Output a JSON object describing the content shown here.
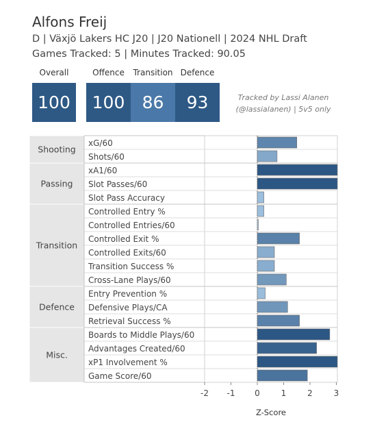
{
  "header": {
    "player_name": "Alfons Freij",
    "player_info": "D | Växjö Lakers HC J20 | J20 Nationell | 2024 NHL Draft",
    "games_info": "Games Tracked: 5 | Minutes Tracked: 90.05"
  },
  "ratings": [
    {
      "label": "Overall",
      "value": "100",
      "color": "#2e5985"
    },
    {
      "label": "Offence",
      "value": "100",
      "color": "#2e5985"
    },
    {
      "label": "Transition",
      "value": "86",
      "color": "#4a78a8"
    },
    {
      "label": "Defence",
      "value": "93",
      "color": "#2e5985"
    }
  ],
  "credit": {
    "line1": "Tracked by Lassi Alanen",
    "line2": "(@lassialanen) | 5v5 only"
  },
  "chart_data": {
    "type": "bar",
    "orientation": "horizontal",
    "xlabel": "Z-Score",
    "xlim": [
      -2.3,
      3.1
    ],
    "xticks": [
      -2,
      -1,
      0,
      1,
      2,
      3
    ],
    "groups": [
      {
        "name": "Shooting",
        "metrics": [
          {
            "label": "xG/60",
            "value": 1.5
          },
          {
            "label": "Shots/60",
            "value": 0.75
          }
        ]
      },
      {
        "name": "Passing",
        "metrics": [
          {
            "label": "xA1/60",
            "value": 3.1
          },
          {
            "label": "Slot Passes/60",
            "value": 3.1
          },
          {
            "label": "Slot Pass Accuracy",
            "value": 0.25
          }
        ]
      },
      {
        "name": "Transition",
        "metrics": [
          {
            "label": "Controlled Entry %",
            "value": 0.25
          },
          {
            "label": "Controlled Entries/60",
            "value": 0.03
          },
          {
            "label": "Controlled Exit %",
            "value": 1.6
          },
          {
            "label": "Controlled Exits/60",
            "value": 0.65
          },
          {
            "label": "Transition Success %",
            "value": 0.65
          },
          {
            "label": "Cross-Lane Plays/60",
            "value": 1.1
          }
        ]
      },
      {
        "name": "Defence",
        "metrics": [
          {
            "label": "Entry Prevention %",
            "value": 0.3
          },
          {
            "label": "Defensive Plays/CA",
            "value": 1.15
          },
          {
            "label": "Retrieval Success %",
            "value": 1.6
          }
        ]
      },
      {
        "name": "Misc.",
        "metrics": [
          {
            "label": "Boards to Middle Plays/60",
            "value": 2.75
          },
          {
            "label": "Advantages Created/60",
            "value": 2.25
          },
          {
            "label": "xP1 Involvement %",
            "value": 3.1
          },
          {
            "label": "Game Score/60",
            "value": 1.9
          }
        ]
      }
    ],
    "colors": {
      "bar_low": "#a9cbe8",
      "bar_high": "#2c5785",
      "group_bg": "#e6e6e6",
      "grid": "#dddddd",
      "axis": "#888888"
    }
  }
}
